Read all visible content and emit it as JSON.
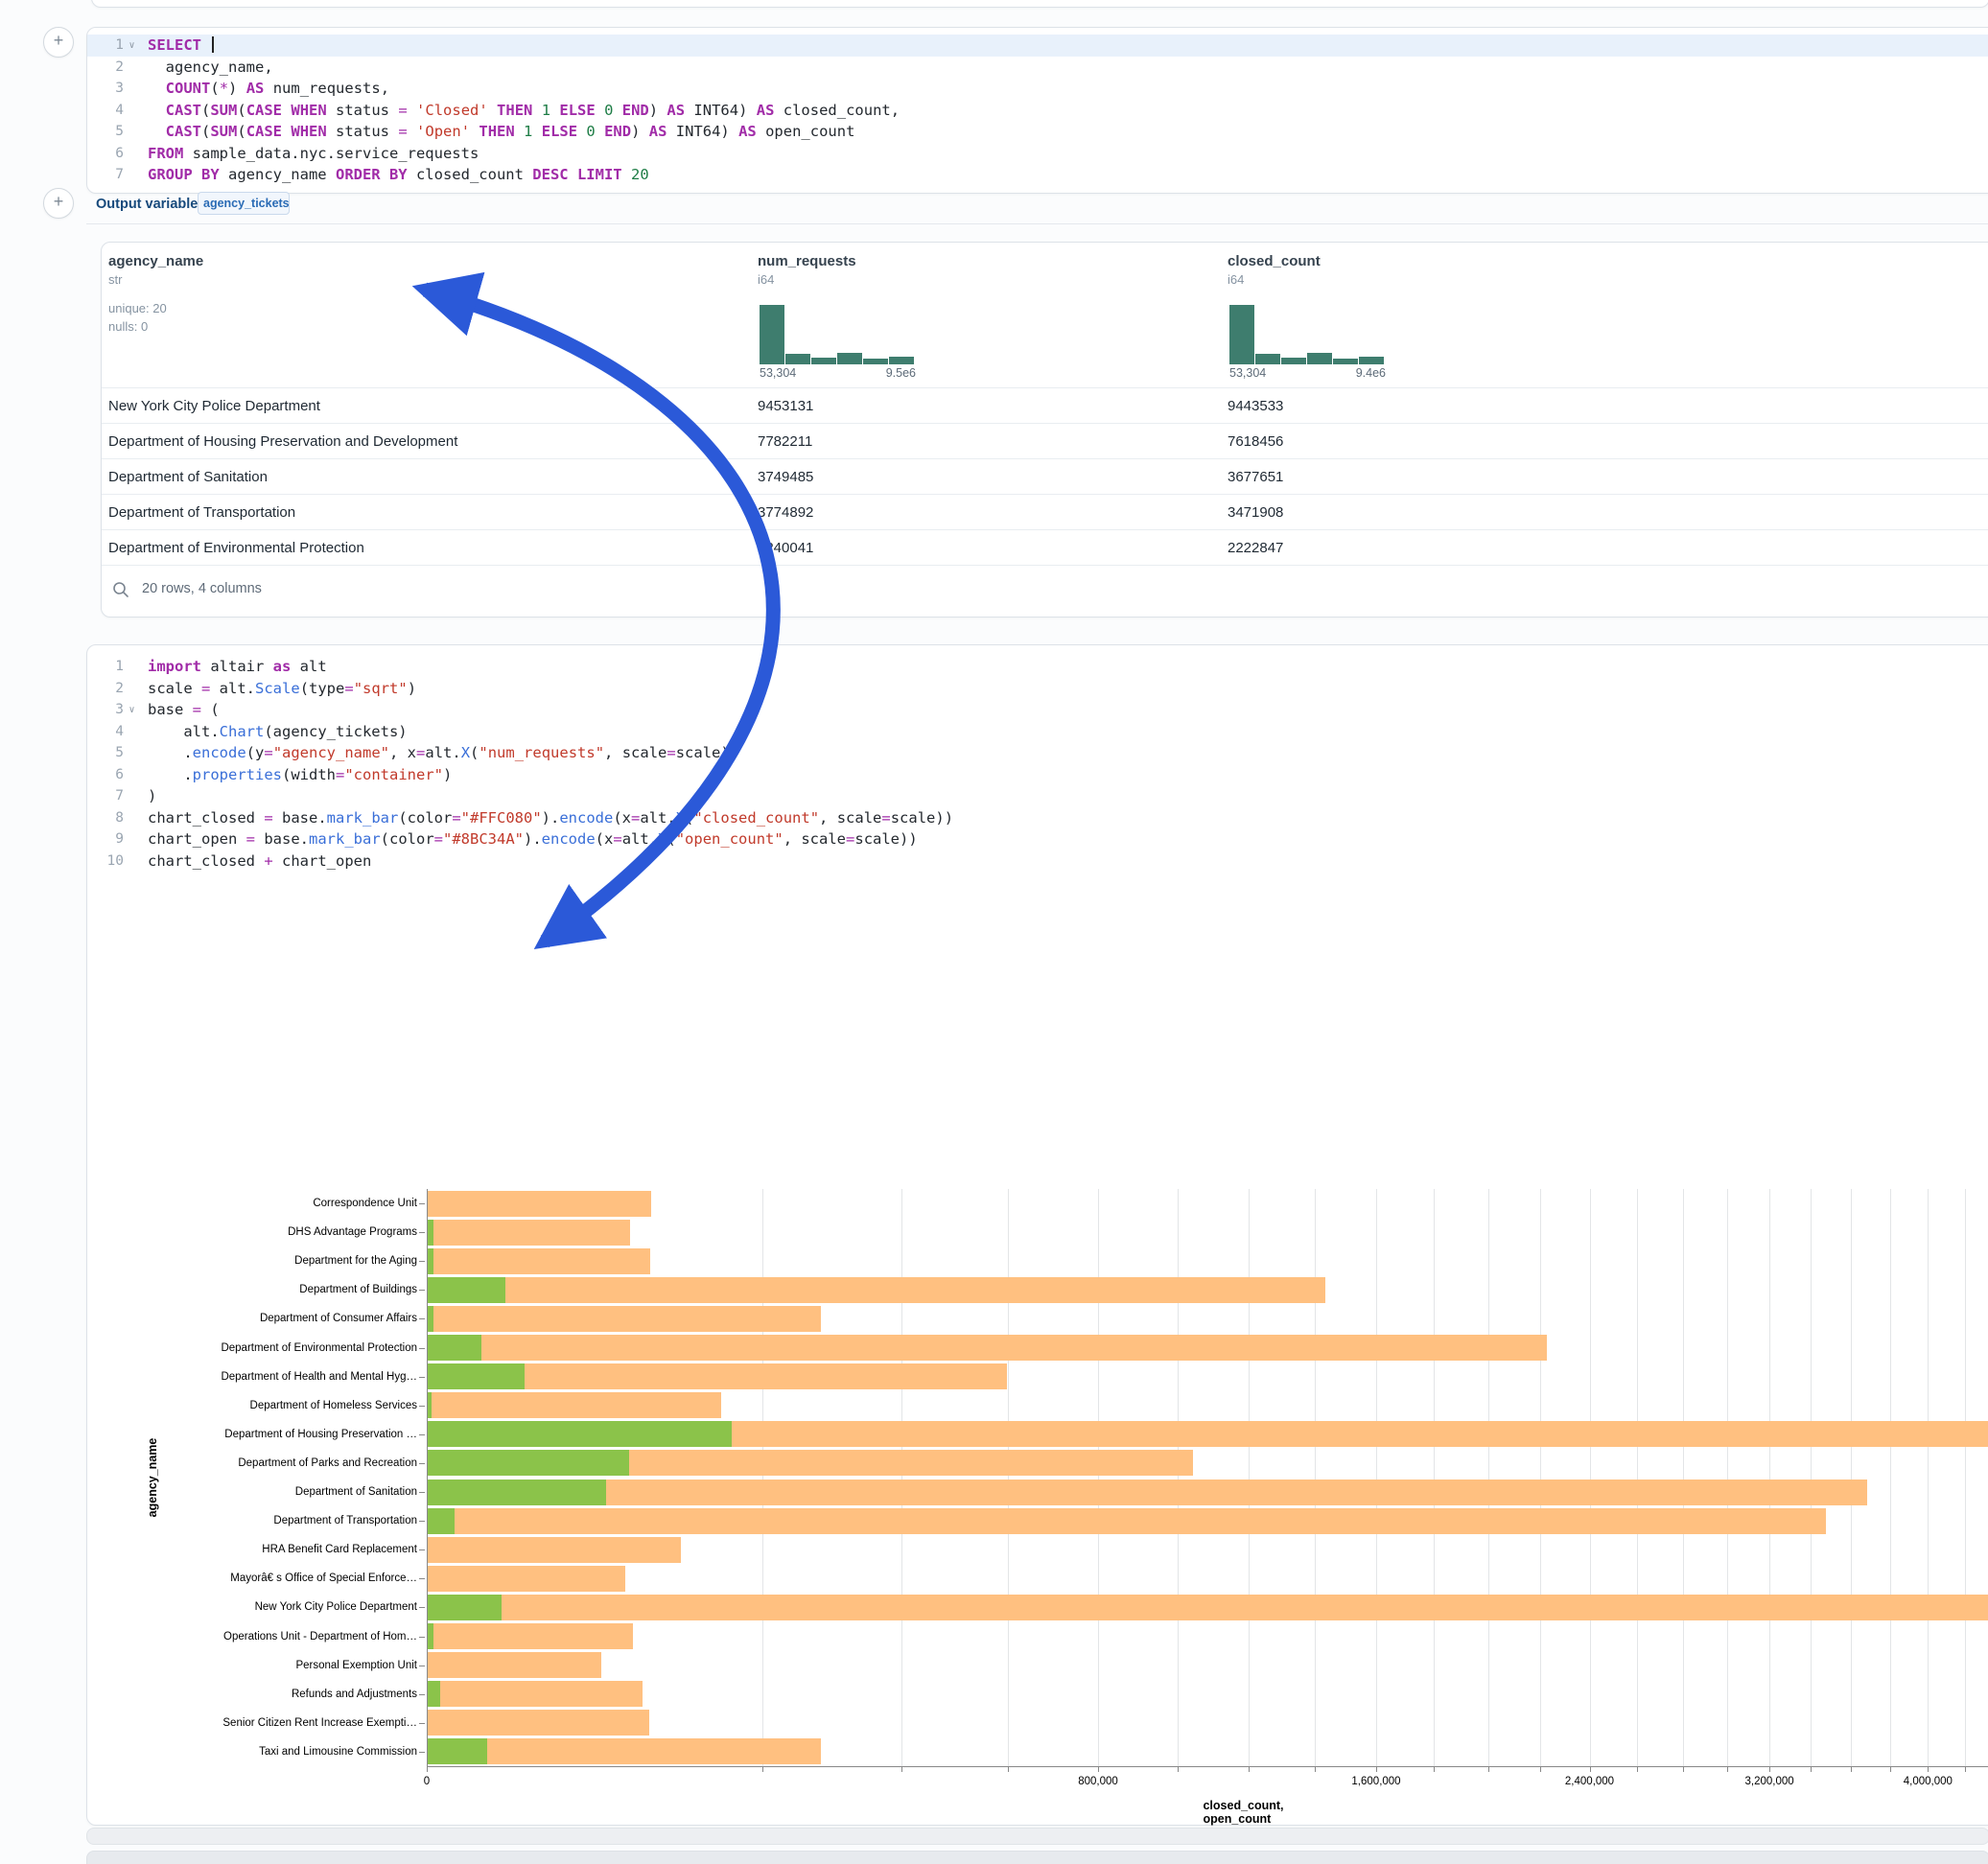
{
  "colors": {
    "bar_closed": "#FFC080",
    "bar_open": "#8BC34A",
    "histogram": "#3e7d6e",
    "arrow": "#2b59d8",
    "accent_blue": "#2a6bb5"
  },
  "sql_cell": {
    "lines": [
      {
        "n": "1",
        "fold": true,
        "hl": true,
        "caret": true,
        "seg": [
          [
            "kw",
            "SELECT"
          ],
          [
            "df",
            " "
          ]
        ]
      },
      {
        "n": "2",
        "seg": [
          [
            "df",
            "  agency_name,"
          ]
        ]
      },
      {
        "n": "3",
        "seg": [
          [
            "df",
            "  "
          ],
          [
            "kw",
            "COUNT"
          ],
          [
            "df",
            "("
          ],
          [
            "op",
            "*"
          ],
          [
            "df",
            ") "
          ],
          [
            "kw",
            "AS"
          ],
          [
            "df",
            " num_requests,"
          ]
        ]
      },
      {
        "n": "4",
        "seg": [
          [
            "df",
            "  "
          ],
          [
            "kw",
            "CAST"
          ],
          [
            "df",
            "("
          ],
          [
            "kw",
            "SUM"
          ],
          [
            "df",
            "("
          ],
          [
            "kw",
            "CASE"
          ],
          [
            "df",
            " "
          ],
          [
            "kw",
            "WHEN"
          ],
          [
            "df",
            " status "
          ],
          [
            "op",
            "="
          ],
          [
            "df",
            " "
          ],
          [
            "str",
            "'Closed'"
          ],
          [
            "df",
            " "
          ],
          [
            "kw",
            "THEN"
          ],
          [
            "df",
            " "
          ],
          [
            "num",
            "1"
          ],
          [
            "df",
            " "
          ],
          [
            "kw",
            "ELSE"
          ],
          [
            "df",
            " "
          ],
          [
            "num",
            "0"
          ],
          [
            "df",
            " "
          ],
          [
            "kw",
            "END"
          ],
          [
            "df",
            ") "
          ],
          [
            "kw",
            "AS"
          ],
          [
            "df",
            " INT64) "
          ],
          [
            "kw",
            "AS"
          ],
          [
            "df",
            " closed_count,"
          ]
        ]
      },
      {
        "n": "5",
        "seg": [
          [
            "df",
            "  "
          ],
          [
            "kw",
            "CAST"
          ],
          [
            "df",
            "("
          ],
          [
            "kw",
            "SUM"
          ],
          [
            "df",
            "("
          ],
          [
            "kw",
            "CASE"
          ],
          [
            "df",
            " "
          ],
          [
            "kw",
            "WHEN"
          ],
          [
            "df",
            " status "
          ],
          [
            "op",
            "="
          ],
          [
            "df",
            " "
          ],
          [
            "str",
            "'Open'"
          ],
          [
            "df",
            " "
          ],
          [
            "kw",
            "THEN"
          ],
          [
            "df",
            " "
          ],
          [
            "num",
            "1"
          ],
          [
            "df",
            " "
          ],
          [
            "kw",
            "ELSE"
          ],
          [
            "df",
            " "
          ],
          [
            "num",
            "0"
          ],
          [
            "df",
            " "
          ],
          [
            "kw",
            "END"
          ],
          [
            "df",
            ") "
          ],
          [
            "kw",
            "AS"
          ],
          [
            "df",
            " INT64) "
          ],
          [
            "kw",
            "AS"
          ],
          [
            "df",
            " open_count"
          ]
        ]
      },
      {
        "n": "6",
        "seg": [
          [
            "kw",
            "FROM"
          ],
          [
            "df",
            " sample_data.nyc.service_requests"
          ]
        ]
      },
      {
        "n": "7",
        "seg": [
          [
            "kw",
            "GROUP BY"
          ],
          [
            "df",
            " agency_name "
          ],
          [
            "kw",
            "ORDER BY"
          ],
          [
            "df",
            " closed_count "
          ],
          [
            "kw",
            "DESC"
          ],
          [
            "df",
            " "
          ],
          [
            "kw",
            "LIMIT"
          ],
          [
            "df",
            " "
          ],
          [
            "num",
            "20"
          ]
        ]
      }
    ]
  },
  "output": {
    "label": "Output variable:",
    "variable": "agency_tickets"
  },
  "table": {
    "columns": [
      {
        "name": "agency_name",
        "type": "str",
        "stats": [
          "unique: 20",
          "nulls: 0"
        ]
      },
      {
        "name": "num_requests",
        "type": "i64",
        "hist": {
          "bars": [
            100,
            18,
            11,
            19,
            10,
            13
          ],
          "min": "53,304",
          "max": "9.5e6"
        }
      },
      {
        "name": "closed_count",
        "type": "i64",
        "hist": {
          "bars": [
            100,
            18,
            11,
            19,
            10,
            13
          ],
          "min": "53,304",
          "max": "9.4e6"
        }
      }
    ],
    "rows": [
      [
        "New York City Police Department",
        "9453131",
        "9443533"
      ],
      [
        "Department of Housing Preservation and Development",
        "7782211",
        "7618456"
      ],
      [
        "Department of Sanitation",
        "3749485",
        "3677651"
      ],
      [
        "Department of Transportation",
        "3774892",
        "3471908"
      ],
      [
        "Department of Environmental Protection",
        "2240041",
        "2222847"
      ]
    ],
    "footer": "20 rows, 4 columns"
  },
  "python_cell": {
    "lines": [
      {
        "n": "1",
        "seg": [
          [
            "kw",
            "import"
          ],
          [
            "df",
            " altair "
          ],
          [
            "kw",
            "as"
          ],
          [
            "df",
            " alt"
          ]
        ]
      },
      {
        "n": "2",
        "seg": [
          [
            "df",
            "scale "
          ],
          [
            "op",
            "="
          ],
          [
            "df",
            " alt."
          ],
          [
            "fn",
            "Scale"
          ],
          [
            "df",
            "(type"
          ],
          [
            "op",
            "="
          ],
          [
            "str",
            "\"sqrt\""
          ],
          [
            "df",
            ")"
          ]
        ]
      },
      {
        "n": "3",
        "fold": true,
        "seg": [
          [
            "df",
            "base "
          ],
          [
            "op",
            "="
          ],
          [
            "df",
            " ("
          ]
        ]
      },
      {
        "n": "4",
        "seg": [
          [
            "df",
            "    alt."
          ],
          [
            "fn",
            "Chart"
          ],
          [
            "df",
            "(agency_tickets)"
          ]
        ]
      },
      {
        "n": "5",
        "seg": [
          [
            "df",
            "    ."
          ],
          [
            "fn",
            "encode"
          ],
          [
            "df",
            "(y"
          ],
          [
            "op",
            "="
          ],
          [
            "str",
            "\"agency_name\""
          ],
          [
            "df",
            ", x"
          ],
          [
            "op",
            "="
          ],
          [
            "df",
            "alt."
          ],
          [
            "fn",
            "X"
          ],
          [
            "df",
            "("
          ],
          [
            "str",
            "\"num_requests\""
          ],
          [
            "df",
            ", scale"
          ],
          [
            "op",
            "="
          ],
          [
            "df",
            "scale))"
          ]
        ]
      },
      {
        "n": "6",
        "seg": [
          [
            "df",
            "    ."
          ],
          [
            "fn",
            "properties"
          ],
          [
            "df",
            "(width"
          ],
          [
            "op",
            "="
          ],
          [
            "str",
            "\"container\""
          ],
          [
            "df",
            ")"
          ]
        ]
      },
      {
        "n": "7",
        "seg": [
          [
            "df",
            ")"
          ]
        ]
      },
      {
        "n": "8",
        "seg": [
          [
            "df",
            "chart_closed "
          ],
          [
            "op",
            "="
          ],
          [
            "df",
            " base."
          ],
          [
            "fn",
            "mark_bar"
          ],
          [
            "df",
            "(color"
          ],
          [
            "op",
            "="
          ],
          [
            "str",
            "\"#FFC080\""
          ],
          [
            "df",
            ")."
          ],
          [
            "fn",
            "encode"
          ],
          [
            "df",
            "(x"
          ],
          [
            "op",
            "="
          ],
          [
            "df",
            "alt."
          ],
          [
            "fn",
            "X"
          ],
          [
            "df",
            "("
          ],
          [
            "str",
            "\"closed_count\""
          ],
          [
            "df",
            ", scale"
          ],
          [
            "op",
            "="
          ],
          [
            "df",
            "scale))"
          ]
        ]
      },
      {
        "n": "9",
        "seg": [
          [
            "df",
            "chart_open "
          ],
          [
            "op",
            "="
          ],
          [
            "df",
            " base."
          ],
          [
            "fn",
            "mark_bar"
          ],
          [
            "df",
            "(color"
          ],
          [
            "op",
            "="
          ],
          [
            "str",
            "\"#8BC34A\""
          ],
          [
            "df",
            ")."
          ],
          [
            "fn",
            "encode"
          ],
          [
            "df",
            "(x"
          ],
          [
            "op",
            "="
          ],
          [
            "df",
            "alt."
          ],
          [
            "fn",
            "X"
          ],
          [
            "df",
            "("
          ],
          [
            "str",
            "\"open_count\""
          ],
          [
            "df",
            ", scale"
          ],
          [
            "op",
            "="
          ],
          [
            "df",
            "scale))"
          ]
        ]
      },
      {
        "n": "10",
        "seg": [
          [
            "df",
            "chart_closed "
          ],
          [
            "op",
            "+"
          ],
          [
            "df",
            " chart_open"
          ]
        ]
      }
    ]
  },
  "chart_data": {
    "type": "bar",
    "orientation": "horizontal",
    "x_scale": "sqrt",
    "title": "",
    "xlabel": "closed_count, open_count",
    "ylabel": "agency_name",
    "categories": [
      "Correspondence Unit",
      "DHS Advantage Programs",
      "Department for the Aging",
      "Department of Buildings",
      "Department of Consumer Affairs",
      "Department of Environmental Protection",
      "Department of Health and Mental Hyg…",
      "Department of Homeless Services",
      "Department of Housing Preservation …",
      "Department of Parks and Recreation",
      "Department of Sanitation",
      "Department of Transportation",
      "HRA Benefit Card Replacement",
      "Mayorâ€ s Office of Special Enforce…",
      "New York City Police Department",
      "Operations Unit - Department of Hom…",
      "Personal Exemption Unit",
      "Refunds and Adjustments",
      "Senior Citizen Rent Increase Exempti…",
      "Taxi and Limousine Commission"
    ],
    "series": [
      {
        "name": "closed_count",
        "color": "#FFC080",
        "values": [
          89000,
          73000,
          88000,
          1430000,
          274000,
          2222847,
          595000,
          153000,
          7618456,
          1040000,
          3677651,
          3471908,
          114000,
          69000,
          9443533,
          75000,
          53304,
          82000,
          87000,
          274000
        ]
      },
      {
        "name": "open_count",
        "color": "#8BC34A",
        "values": [
          0,
          60,
          60,
          10700,
          60,
          5100,
          16600,
          25,
          163755,
          72000,
          56500,
          1280,
          0,
          0,
          9598,
          60,
          0,
          280,
          0,
          6300
        ]
      }
    ],
    "x_ticks": {
      "values": [
        0,
        800000,
        1600000,
        2400000,
        3200000,
        4000000
      ],
      "labels": [
        "0",
        "800,000",
        "1,600,000",
        "2,400,000",
        "3,200,000",
        "4,000,000"
      ]
    },
    "gridline_step": 200000,
    "xlim": [
      0,
      4200000
    ],
    "grid": true,
    "legend": "none"
  }
}
